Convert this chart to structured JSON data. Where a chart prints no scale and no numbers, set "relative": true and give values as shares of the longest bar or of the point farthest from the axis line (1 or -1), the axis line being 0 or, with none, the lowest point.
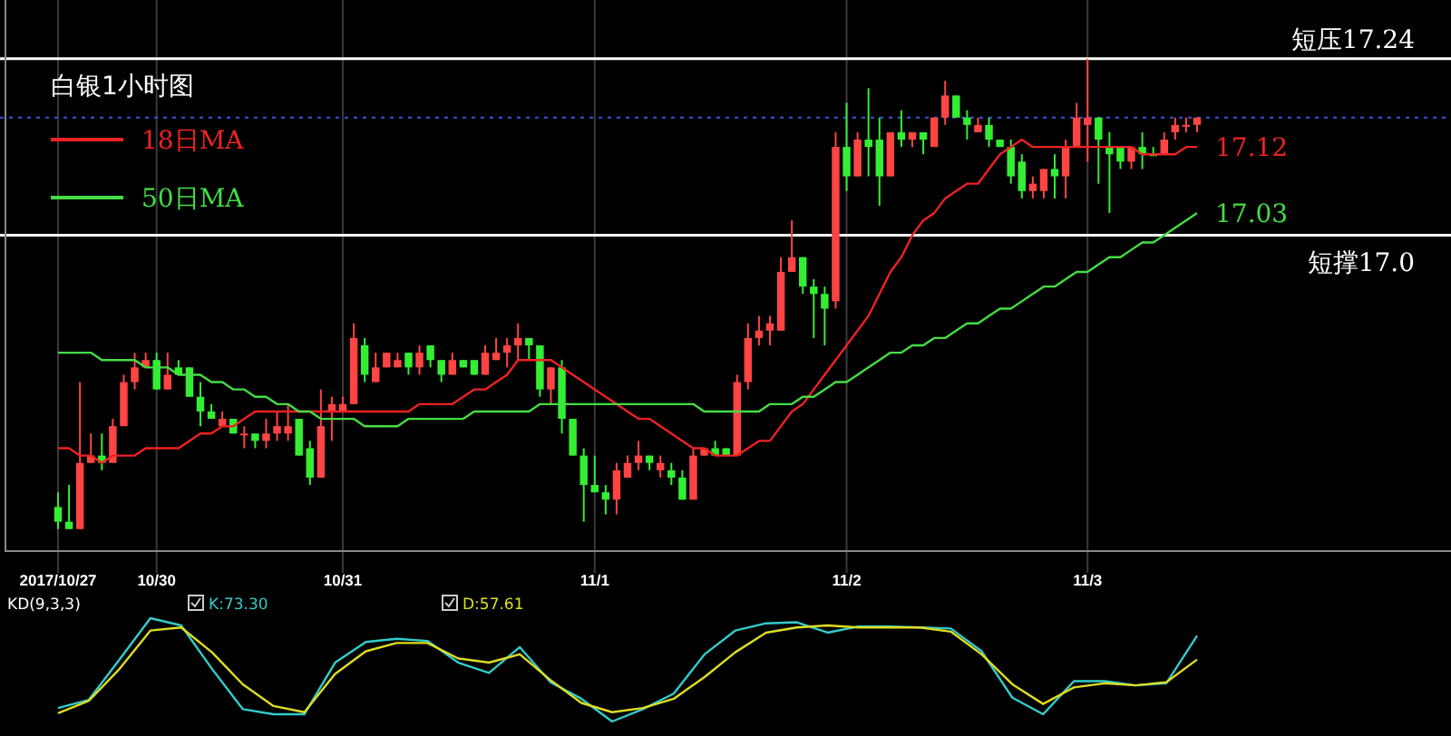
{
  "chart_data": [
    {
      "type": "candlestick",
      "title": "白银1小时图",
      "categories": [
        "2017/10/27",
        null,
        null,
        null,
        null,
        null,
        null,
        null,
        null,
        "10/30",
        null,
        null,
        null,
        null,
        null,
        null,
        null,
        null,
        null,
        null,
        null,
        null,
        null,
        null,
        null,
        null,
        "10/31",
        null,
        null,
        null,
        null,
        null,
        null,
        null,
        null,
        null,
        null,
        null,
        null,
        null,
        null,
        null,
        null,
        null,
        null,
        null,
        null,
        null,
        null,
        "11/1",
        null,
        null,
        null,
        null,
        null,
        null,
        null,
        null,
        null,
        null,
        null,
        null,
        null,
        null,
        null,
        null,
        null,
        null,
        null,
        null,
        null,
        null,
        "11/2",
        null,
        null,
        null,
        null,
        null,
        null,
        null,
        null,
        null,
        null,
        null,
        null,
        null,
        null,
        null,
        null,
        null,
        null,
        null,
        null,
        null,
        "11/3",
        null,
        null,
        null,
        null,
        null,
        null,
        null,
        null,
        null,
        null
      ],
      "ohlc": [
        [
          16.63,
          16.65,
          16.6,
          16.61
        ],
        [
          16.61,
          16.66,
          16.6,
          16.6
        ],
        [
          16.6,
          16.8,
          16.6,
          16.69
        ],
        [
          16.69,
          16.73,
          16.69,
          16.7
        ],
        [
          16.7,
          16.73,
          16.68,
          16.69
        ],
        [
          16.69,
          16.75,
          16.69,
          16.74
        ],
        [
          16.74,
          16.81,
          16.74,
          16.8
        ],
        [
          16.8,
          16.84,
          16.79,
          16.82
        ],
        [
          16.82,
          16.84,
          16.82,
          16.83
        ],
        [
          16.83,
          16.84,
          16.79,
          16.79
        ],
        [
          16.79,
          16.84,
          16.79,
          16.81
        ],
        [
          16.82,
          16.83,
          16.81,
          16.81
        ],
        [
          16.82,
          16.82,
          16.78,
          16.78
        ],
        [
          16.78,
          16.8,
          16.74,
          16.76
        ],
        [
          16.76,
          16.77,
          16.75,
          16.75
        ],
        [
          16.74,
          16.76,
          16.74,
          16.75
        ],
        [
          16.75,
          16.75,
          16.73,
          16.73
        ],
        [
          16.73,
          16.74,
          16.71,
          16.73
        ],
        [
          16.73,
          16.73,
          16.71,
          16.72
        ],
        [
          16.72,
          16.75,
          16.71,
          16.73
        ],
        [
          16.73,
          16.76,
          16.72,
          16.74
        ],
        [
          16.73,
          16.77,
          16.72,
          16.74
        ],
        [
          16.75,
          16.75,
          16.7,
          16.7
        ],
        [
          16.71,
          16.72,
          16.66,
          16.67
        ],
        [
          16.67,
          16.79,
          16.67,
          16.74
        ],
        [
          16.76,
          16.78,
          16.72,
          16.77
        ],
        [
          16.76,
          16.78,
          16.76,
          16.77
        ],
        [
          16.77,
          16.88,
          16.77,
          16.86
        ],
        [
          16.85,
          16.86,
          16.8,
          16.81
        ],
        [
          16.8,
          16.84,
          16.8,
          16.82
        ],
        [
          16.82,
          16.84,
          16.82,
          16.84
        ],
        [
          16.82,
          16.84,
          16.82,
          16.83
        ],
        [
          16.84,
          16.84,
          16.81,
          16.82
        ],
        [
          16.82,
          16.85,
          16.81,
          16.84
        ],
        [
          16.85,
          16.85,
          16.82,
          16.83
        ],
        [
          16.83,
          16.83,
          16.8,
          16.81
        ],
        [
          16.81,
          16.84,
          16.81,
          16.83
        ],
        [
          16.83,
          16.83,
          16.82,
          16.82
        ],
        [
          16.83,
          16.83,
          16.81,
          16.81
        ],
        [
          16.81,
          16.85,
          16.81,
          16.84
        ],
        [
          16.83,
          16.86,
          16.83,
          16.84
        ],
        [
          16.84,
          16.86,
          16.82,
          16.85
        ],
        [
          16.85,
          16.88,
          16.83,
          16.86
        ],
        [
          16.86,
          16.86,
          16.83,
          16.85
        ],
        [
          16.85,
          16.85,
          16.78,
          16.79
        ],
        [
          16.79,
          16.82,
          16.77,
          16.82
        ],
        [
          16.82,
          16.83,
          16.73,
          16.75
        ],
        [
          16.75,
          16.75,
          16.7,
          16.7
        ],
        [
          16.7,
          16.71,
          16.61,
          16.66
        ],
        [
          16.66,
          16.7,
          16.65,
          16.65
        ],
        [
          16.65,
          16.66,
          16.62,
          16.64
        ],
        [
          16.64,
          16.69,
          16.62,
          16.68
        ],
        [
          16.67,
          16.7,
          16.67,
          16.69
        ],
        [
          16.69,
          16.72,
          16.68,
          16.7
        ],
        [
          16.7,
          16.7,
          16.68,
          16.69
        ],
        [
          16.68,
          16.7,
          16.67,
          16.69
        ],
        [
          16.68,
          16.69,
          16.66,
          16.67
        ],
        [
          16.67,
          16.68,
          16.64,
          16.64
        ],
        [
          16.64,
          16.71,
          16.64,
          16.7
        ],
        [
          16.7,
          16.71,
          16.7,
          16.71
        ],
        [
          16.71,
          16.72,
          16.7,
          16.7
        ],
        [
          16.71,
          16.71,
          16.7,
          16.7
        ],
        [
          16.7,
          16.81,
          16.7,
          16.8
        ],
        [
          16.8,
          16.88,
          16.79,
          16.86
        ],
        [
          16.86,
          16.89,
          16.85,
          16.87
        ],
        [
          16.87,
          16.89,
          16.85,
          16.88
        ],
        [
          16.87,
          16.97,
          16.87,
          16.95
        ],
        [
          16.95,
          17.02,
          16.95,
          16.97
        ],
        [
          16.97,
          16.97,
          16.92,
          16.93
        ],
        [
          16.93,
          16.94,
          16.86,
          16.92
        ],
        [
          16.92,
          16.93,
          16.85,
          16.9
        ],
        [
          16.91,
          17.14,
          16.9,
          17.12
        ],
        [
          17.12,
          17.18,
          17.06,
          17.08
        ],
        [
          17.08,
          17.14,
          17.08,
          17.13
        ],
        [
          17.13,
          17.2,
          17.08,
          17.12
        ],
        [
          17.13,
          17.16,
          17.04,
          17.08
        ],
        [
          17.08,
          17.14,
          17.08,
          17.14
        ],
        [
          17.14,
          17.17,
          17.12,
          17.13
        ],
        [
          17.13,
          17.14,
          17.12,
          17.14
        ],
        [
          17.14,
          17.14,
          17.11,
          17.13
        ],
        [
          17.12,
          17.16,
          17.12,
          17.16
        ],
        [
          17.16,
          17.21,
          17.15,
          17.19
        ],
        [
          17.19,
          17.19,
          17.16,
          17.16
        ],
        [
          17.16,
          17.17,
          17.13,
          17.15
        ],
        [
          17.14,
          17.16,
          17.14,
          17.15
        ],
        [
          17.15,
          17.16,
          17.12,
          17.13
        ],
        [
          17.13,
          17.13,
          17.12,
          17.12
        ],
        [
          17.12,
          17.13,
          17.07,
          17.08
        ],
        [
          17.1,
          17.11,
          17.05,
          17.06
        ],
        [
          17.06,
          17.08,
          17.05,
          17.07
        ],
        [
          17.06,
          17.09,
          17.05,
          17.09
        ],
        [
          17.09,
          17.11,
          17.05,
          17.08
        ],
        [
          17.08,
          17.13,
          17.05,
          17.12
        ],
        [
          17.12,
          17.18,
          17.12,
          17.16
        ],
        [
          17.15,
          17.24,
          17.1,
          17.16
        ],
        [
          17.16,
          17.16,
          17.07,
          17.13
        ],
        [
          17.12,
          17.14,
          17.03,
          17.11
        ],
        [
          17.12,
          17.12,
          17.09,
          17.1
        ],
        [
          17.1,
          17.12,
          17.09,
          17.12
        ],
        [
          17.12,
          17.14,
          17.09,
          17.11
        ],
        [
          17.11,
          17.12,
          17.11,
          17.11
        ],
        [
          17.11,
          17.14,
          17.11,
          17.13
        ],
        [
          17.14,
          17.16,
          17.13,
          17.15
        ],
        [
          17.15,
          17.16,
          17.14,
          17.15
        ],
        [
          17.15,
          17.16,
          17.14,
          17.16
        ]
      ],
      "colors": [
        "#33ee33",
        "#33ee33",
        "#ff4444",
        "#ff4444",
        "#33ee33",
        "#ff4444",
        "#ff4444",
        "#ff4444",
        "#ff4444",
        "#33ee33",
        "#ff4444",
        "#33ee33",
        "#33ee33",
        "#33ee33",
        "#33ee33",
        "#ff4444",
        "#33ee33",
        "#ff4444",
        "#33ee33",
        "#ff4444",
        "#ff4444",
        "#ff4444",
        "#33ee33",
        "#33ee33",
        "#ff4444",
        "#ff4444",
        "#ff4444",
        "#ff4444",
        "#33ee33",
        "#ff4444",
        "#ff4444",
        "#ff4444",
        "#33ee33",
        "#ff4444",
        "#33ee33",
        "#33ee33",
        "#ff4444",
        "#33ee33",
        "#33ee33",
        "#ff4444",
        "#ff4444",
        "#ff4444",
        "#ff4444",
        "#33ee33",
        "#33ee33",
        "#ff4444",
        "#33ee33",
        "#33ee33",
        "#33ee33",
        "#33ee33",
        "#33ee33",
        "#ff4444",
        "#ff4444",
        "#ff4444",
        "#33ee33",
        "#ff4444",
        "#33ee33",
        "#33ee33",
        "#ff4444",
        "#ff4444",
        "#33ee33",
        "#33ee33",
        "#ff4444",
        "#ff4444",
        "#ff4444",
        "#ff4444",
        "#ff4444",
        "#ff4444",
        "#33ee33",
        "#33ee33",
        "#33ee33",
        "#ff4444",
        "#33ee33",
        "#ff4444",
        "#33ee33",
        "#33ee33",
        "#ff4444",
        "#33ee33",
        "#ff4444",
        "#33ee33",
        "#ff4444",
        "#ff4444",
        "#33ee33",
        "#33ee33",
        "#ff4444",
        "#33ee33",
        "#33ee33",
        "#33ee33",
        "#33ee33",
        "#ff4444",
        "#ff4444",
        "#33ee33",
        "#ff4444",
        "#ff4444",
        "#ff4444",
        "#33ee33",
        "#33ee33",
        "#33ee33",
        "#ff4444",
        "#33ee33",
        "#33ee33",
        "#ff4444",
        "#ff4444",
        "#ff4444",
        "#ff4444"
      ],
      "series": [
        {
          "type": "line",
          "name": "18日MA",
          "color": "#ee2222",
          "values": [
            16.71,
            16.71,
            16.7,
            16.7,
            16.69,
            16.7,
            16.7,
            16.7,
            16.71,
            16.71,
            16.71,
            16.71,
            16.72,
            16.73,
            16.73,
            16.74,
            16.74,
            16.75,
            16.76,
            16.76,
            16.76,
            16.76,
            16.76,
            16.76,
            16.76,
            16.76,
            16.76,
            16.76,
            16.76,
            16.76,
            16.76,
            16.76,
            16.76,
            16.77,
            16.77,
            16.77,
            16.77,
            16.78,
            16.79,
            16.79,
            16.8,
            16.81,
            16.83,
            16.83,
            16.83,
            16.83,
            16.82,
            16.81,
            16.8,
            16.79,
            16.78,
            16.77,
            16.76,
            16.75,
            16.75,
            16.74,
            16.73,
            16.72,
            16.71,
            16.71,
            16.7,
            16.7,
            16.7,
            16.71,
            16.72,
            16.72,
            16.74,
            16.76,
            16.77,
            16.79,
            16.81,
            16.83,
            16.85,
            16.87,
            16.89,
            16.92,
            16.95,
            16.97,
            17.0,
            17.02,
            17.03,
            17.05,
            17.06,
            17.07,
            17.07,
            17.09,
            17.11,
            17.12,
            17.13,
            17.12,
            17.12,
            17.12,
            17.12,
            17.12,
            17.12,
            17.12,
            17.12,
            17.12,
            17.12,
            17.11,
            17.11,
            17.11,
            17.11,
            17.12,
            17.12
          ]
        },
        {
          "type": "line",
          "name": "50日MA",
          "color": "#44dd44",
          "values": [
            16.84,
            16.84,
            16.84,
            16.84,
            16.83,
            16.83,
            16.83,
            16.83,
            16.82,
            16.82,
            16.82,
            16.81,
            16.81,
            16.81,
            16.8,
            16.8,
            16.79,
            16.79,
            16.78,
            16.78,
            16.77,
            16.77,
            16.76,
            16.76,
            16.75,
            16.75,
            16.75,
            16.75,
            16.74,
            16.74,
            16.74,
            16.74,
            16.75,
            16.75,
            16.75,
            16.75,
            16.75,
            16.75,
            16.76,
            16.76,
            16.76,
            16.76,
            16.76,
            16.76,
            16.77,
            16.77,
            16.77,
            16.77,
            16.77,
            16.77,
            16.77,
            16.77,
            16.77,
            16.77,
            16.77,
            16.77,
            16.77,
            16.77,
            16.77,
            16.76,
            16.76,
            16.76,
            16.76,
            16.76,
            16.76,
            16.77,
            16.77,
            16.77,
            16.78,
            16.78,
            16.79,
            16.8,
            16.8,
            16.81,
            16.82,
            16.83,
            16.84,
            16.84,
            16.85,
            16.85,
            16.86,
            16.86,
            16.87,
            16.88,
            16.88,
            16.89,
            16.9,
            16.9,
            16.91,
            16.92,
            16.93,
            16.93,
            16.94,
            16.95,
            16.95,
            16.96,
            16.97,
            16.97,
            16.98,
            16.99,
            16.99,
            17.0,
            17.01,
            17.02,
            17.03
          ]
        }
      ],
      "ylim": [
        16.57,
        17.32
      ],
      "tick_labels": "x",
      "grid": "x",
      "legend": "top left",
      "ref_lines": [
        {
          "axis": "y",
          "value": 17.24,
          "label": "短压17.24",
          "color": "#ffffff"
        },
        {
          "axis": "y",
          "value": 17.0,
          "label": "短撑17.0",
          "color": "#ffffff"
        },
        {
          "axis": "y",
          "value": 17.16,
          "color": "#3355dd",
          "line_style": "dotted"
        }
      ],
      "annotations": [
        "17.12",
        "17.03"
      ]
    },
    {
      "type": "line",
      "title": "KD(9,3,3)",
      "relative": true,
      "legend": "top left",
      "tick_labels": false,
      "categories": [
        null,
        null,
        null,
        null,
        null,
        null,
        null,
        null,
        null,
        null,
        null,
        null,
        null,
        null,
        null,
        null,
        null,
        null,
        null,
        null,
        null,
        null,
        null,
        null,
        null,
        null,
        null,
        null,
        null,
        null,
        null,
        null,
        null,
        null,
        null,
        null,
        null,
        null
      ],
      "series": [
        {
          "name": "K:73.30",
          "color": "#33cccc",
          "values": [
            0.13,
            0.21,
            0.6,
            1.0,
            0.93,
            0.51,
            0.12,
            0.07,
            0.07,
            0.57,
            0.77,
            0.8,
            0.78,
            0.57,
            0.47,
            0.72,
            0.38,
            0.22,
            0.0,
            0.12,
            0.27,
            0.65,
            0.88,
            0.95,
            0.96,
            0.86,
            0.92,
            0.92,
            0.91,
            0.9,
            0.68,
            0.23,
            0.07,
            0.39,
            0.39,
            0.35,
            0.37,
            0.83
          ]
        },
        {
          "name": "D:57.61",
          "color": "#dddd22",
          "values": [
            0.08,
            0.2,
            0.51,
            0.88,
            0.91,
            0.67,
            0.36,
            0.15,
            0.09,
            0.46,
            0.68,
            0.76,
            0.76,
            0.61,
            0.57,
            0.65,
            0.4,
            0.18,
            0.09,
            0.13,
            0.22,
            0.43,
            0.67,
            0.86,
            0.91,
            0.93,
            0.91,
            0.91,
            0.91,
            0.87,
            0.65,
            0.36,
            0.17,
            0.33,
            0.37,
            0.35,
            0.38,
            0.6
          ]
        }
      ]
    }
  ]
}
